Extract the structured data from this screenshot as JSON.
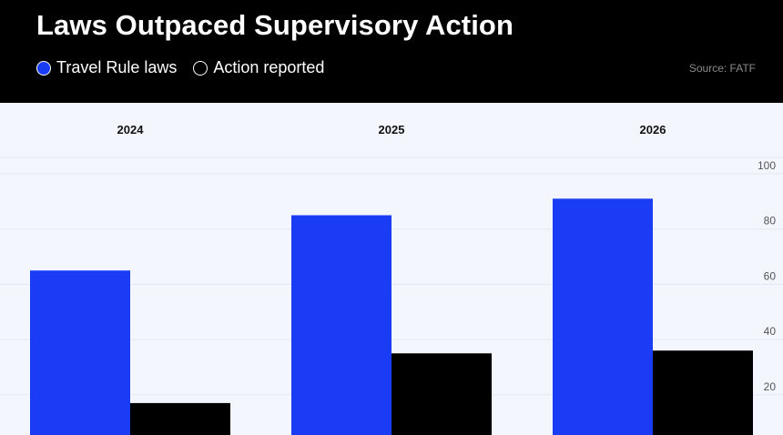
{
  "title": "Laws Outpaced Supervisory Action",
  "legend": [
    {
      "label": "Travel Rule laws",
      "color": "#1a3cf5"
    },
    {
      "label": "Action reported",
      "color": "#000000"
    }
  ],
  "source": "Source: FATF",
  "chart_data": {
    "type": "bar",
    "categories": [
      "2024",
      "2025",
      "2026"
    ],
    "series": [
      {
        "name": "Travel Rule laws",
        "color": "#1a3cf5",
        "values": [
          65,
          85,
          91
        ]
      },
      {
        "name": "Action reported",
        "color": "#000000",
        "values": [
          17,
          35,
          36
        ]
      }
    ],
    "yticks": [
      20,
      40,
      60,
      80,
      100
    ],
    "ylim": [
      0,
      100
    ],
    "grid": true,
    "legend_position": "top-left"
  }
}
